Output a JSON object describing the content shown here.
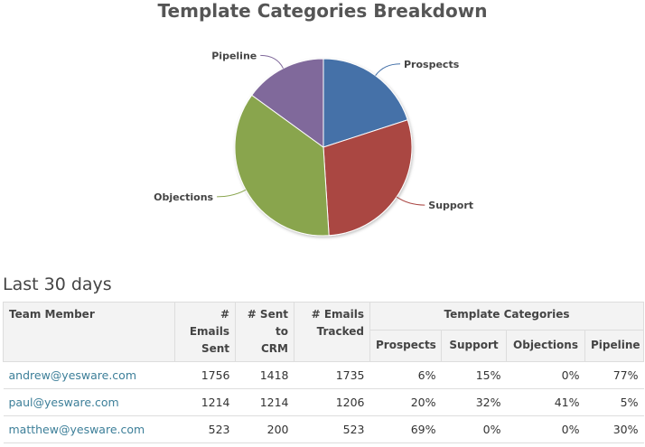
{
  "chart_data": {
    "type": "pie",
    "title": "Template Categories Breakdown",
    "slices": [
      {
        "label": "Prospects",
        "value": 20,
        "color": "#4571a8"
      },
      {
        "label": "Support",
        "value": 29,
        "color": "#aa4643"
      },
      {
        "label": "Objections",
        "value": 36,
        "color": "#89a54e"
      },
      {
        "label": "Pipeline",
        "value": 15,
        "color": "#80699b"
      }
    ]
  },
  "section": {
    "heading": "Last 30 days"
  },
  "table": {
    "headers": {
      "member": "Team Member",
      "emails_sent": [
        "#",
        "Emails",
        "Sent"
      ],
      "sent_crm": [
        "# Sent",
        "to",
        "CRM"
      ],
      "emails_tracked": [
        "# Emails",
        "Tracked"
      ],
      "template_categories": "Template Categories",
      "prospects": "Prospects",
      "support": "Support",
      "objections": "Objections",
      "pipeline": "Pipeline"
    },
    "rows": [
      {
        "member": "andrew@yesware.com",
        "sent": "1756",
        "crm": "1418",
        "tracked": "1735",
        "prospects": "6%",
        "support": "15%",
        "objections": "0%",
        "pipeline": "77%"
      },
      {
        "member": "paul@yesware.com",
        "sent": "1214",
        "crm": "1214",
        "tracked": "1206",
        "prospects": "20%",
        "support": "32%",
        "objections": "41%",
        "pipeline": "5%"
      },
      {
        "member": "matthew@yesware.com",
        "sent": "523",
        "crm": "200",
        "tracked": "523",
        "prospects": "69%",
        "support": "0%",
        "objections": "0%",
        "pipeline": "30%"
      }
    ]
  }
}
